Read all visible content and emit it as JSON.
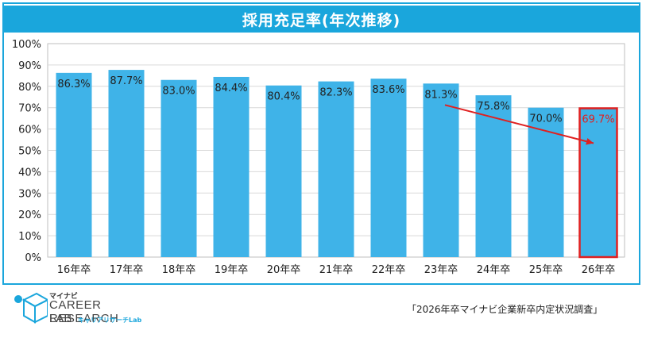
{
  "header": {
    "title": "採用充足率(年次推移)"
  },
  "footer": {
    "logo_small": "マイナビ",
    "logo_main": "CAREER RESEARCH",
    "logo_lab": "LAB",
    "logo_sub": "キャリアリサーチLab",
    "source": "「2026年卒マイナビ企業新卒内定状況調査」"
  },
  "colors": {
    "bar": "#3fb3e8",
    "accent": "#1aa6dc",
    "highlight": "#e02020",
    "grid": "#d9d9d9"
  },
  "chart_data": {
    "type": "bar",
    "title": "採用充足率(年次推移)",
    "categories": [
      "16年卒",
      "17年卒",
      "18年卒",
      "19年卒",
      "20年卒",
      "21年卒",
      "22年卒",
      "23年卒",
      "24年卒",
      "25年卒",
      "26年卒"
    ],
    "values": [
      86.3,
      87.7,
      83.0,
      84.4,
      80.4,
      82.3,
      83.6,
      81.3,
      75.8,
      70.0,
      69.7
    ],
    "data_labels": [
      "86.3%",
      "87.7%",
      "83.0%",
      "84.4%",
      "80.4%",
      "82.3%",
      "83.6%",
      "81.3%",
      "75.8%",
      "70.0%",
      "69.7%"
    ],
    "yticks": [
      "0%",
      "10%",
      "20%",
      "30%",
      "40%",
      "50%",
      "60%",
      "70%",
      "80%",
      "90%",
      "100%"
    ],
    "ylim": [
      0,
      100
    ],
    "grid": true,
    "legend": "none",
    "highlight_index": 10,
    "trend_arrow": {
      "from_index": 7,
      "to_index": 10
    }
  }
}
